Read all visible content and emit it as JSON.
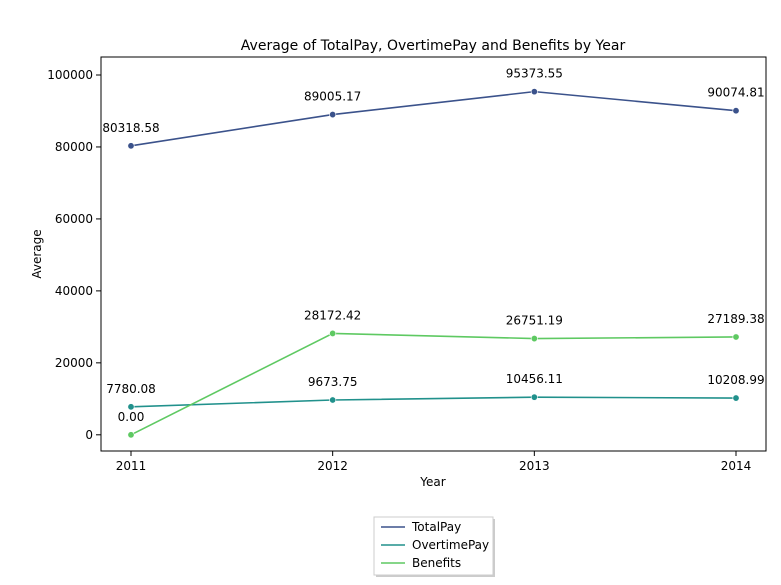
{
  "chart_data": {
    "type": "line",
    "title": "Average of TotalPay, OvertimePay and Benefits by Year",
    "xlabel": "Year",
    "ylabel": "Average",
    "categories": [
      "2011",
      "2012",
      "2013",
      "2014"
    ],
    "ylim": [
      -4500,
      105000
    ],
    "yticks": [
      0,
      20000,
      40000,
      60000,
      80000,
      100000
    ],
    "grid": false,
    "legend_position": "bottom-center",
    "series": [
      {
        "name": "TotalPay",
        "color": "#3b528b",
        "values": [
          80318.58,
          89005.17,
          95373.55,
          90074.81
        ],
        "labels": [
          "80318.58",
          "89005.17",
          "95373.55",
          "90074.81"
        ]
      },
      {
        "name": "OvertimePay",
        "color": "#21918c",
        "values": [
          7780.08,
          9673.75,
          10456.11,
          10208.99
        ],
        "labels": [
          "7780.08",
          "9673.75",
          "10456.11",
          "10208.99"
        ]
      },
      {
        "name": "Benefits",
        "color": "#5ec962",
        "values": [
          0.0,
          28172.42,
          26751.19,
          27189.38
        ],
        "labels": [
          "0.00",
          "28172.42",
          "26751.19",
          "27189.38"
        ]
      }
    ]
  }
}
